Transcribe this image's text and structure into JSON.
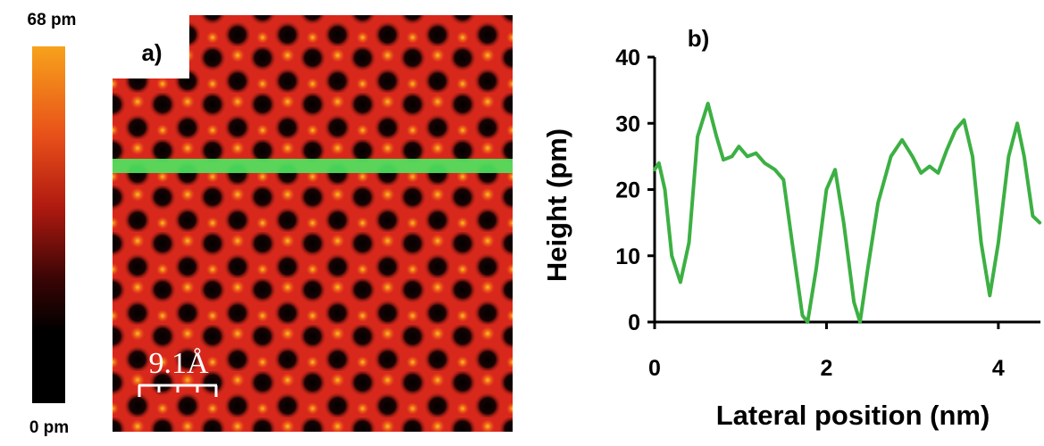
{
  "colorbar": {
    "max_label": "68 pm",
    "min_label": "0 pm"
  },
  "image": {
    "panel_label": "a)",
    "scale_bar_label": "9.1Å"
  },
  "chart_data": {
    "type": "line",
    "panel_label": "b)",
    "x_label": "Lateral position (nm)",
    "y_label": "Height (pm)",
    "xlim": [
      0,
      4.5
    ],
    "xticks": [
      0,
      2,
      4
    ],
    "ylim": [
      0,
      40
    ],
    "yticks": [
      0,
      10,
      20,
      30,
      40
    ],
    "color": "#3cb043",
    "x": [
      0,
      0.05,
      0.12,
      0.2,
      0.3,
      0.4,
      0.5,
      0.62,
      0.72,
      0.8,
      0.9,
      0.98,
      1.08,
      1.18,
      1.28,
      1.4,
      1.5,
      1.6,
      1.72,
      1.78,
      1.88,
      2.0,
      2.1,
      2.2,
      2.32,
      2.39,
      2.48,
      2.6,
      2.75,
      2.88,
      3.0,
      3.1,
      3.2,
      3.3,
      3.4,
      3.5,
      3.6,
      3.7,
      3.8,
      3.9,
      4.0,
      4.12,
      4.22,
      4.3,
      4.4,
      4.48
    ],
    "values": [
      23,
      24,
      20,
      10,
      6,
      12,
      28,
      33,
      28,
      24.5,
      25,
      26.5,
      25,
      25.5,
      24,
      23,
      21.5,
      12,
      1,
      0,
      8,
      20,
      23,
      15,
      3,
      0,
      8,
      18,
      25,
      27.5,
      25,
      22.5,
      23.5,
      22.5,
      26,
      29,
      30.5,
      25,
      12,
      4,
      12,
      25,
      30,
      25,
      16,
      15
    ]
  }
}
